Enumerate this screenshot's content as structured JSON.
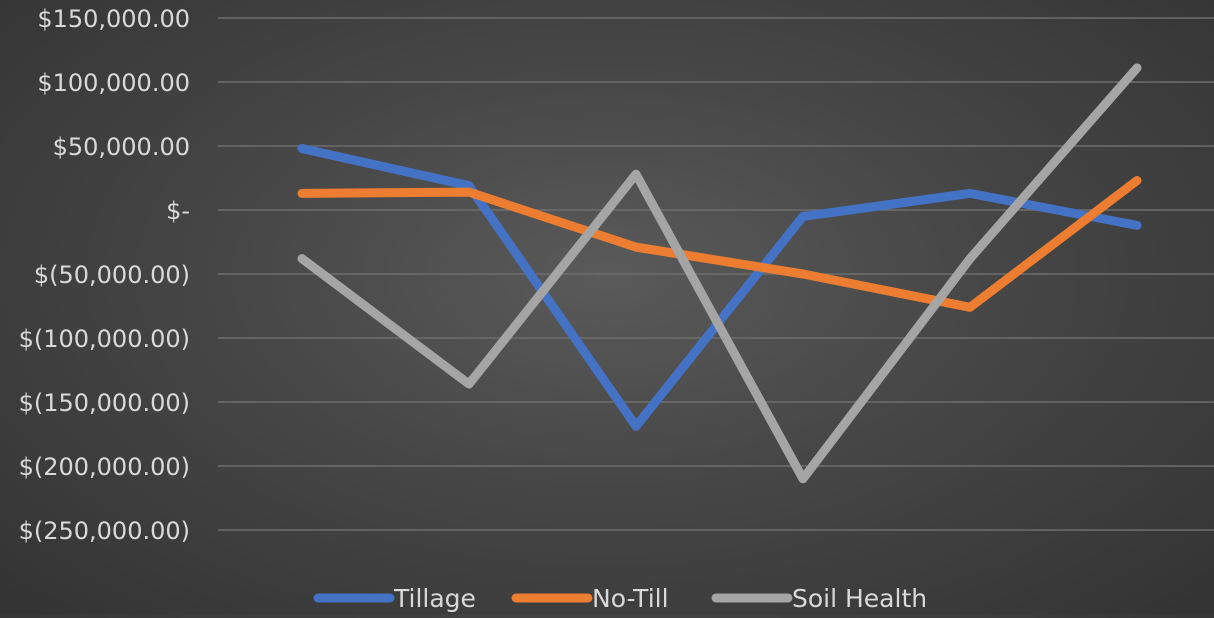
{
  "chart_data": {
    "type": "line",
    "title": "",
    "xlabel": "",
    "ylabel": "",
    "x": [
      1,
      2,
      3,
      4,
      5,
      6
    ],
    "ylim": [
      -250000,
      150000
    ],
    "y_ticks": [
      150000,
      100000,
      50000,
      0,
      -50000,
      -100000,
      -150000,
      -200000,
      -250000
    ],
    "y_tick_labels": [
      "$150,000.00",
      "$100,000.00",
      "$50,000.00",
      "$-",
      "$(50,000.00)",
      "$(100,000.00)",
      "$(150,000.00)",
      "$(200,000.00)",
      "$(250,000.00)"
    ],
    "grid": true,
    "legend_position": "bottom",
    "series": [
      {
        "name": "Tillage",
        "color": "#4472c4",
        "values": [
          48000,
          19000,
          -169000,
          -5000,
          13000,
          -12000
        ]
      },
      {
        "name": "No-Till",
        "color": "#ed7d31",
        "values": [
          13000,
          14000,
          -29000,
          -50000,
          -76000,
          23000
        ]
      },
      {
        "name": "Soil Health",
        "color": "#a5a5a5",
        "values": [
          -38000,
          -136000,
          28000,
          -210000,
          -38000,
          111000
        ]
      }
    ]
  }
}
